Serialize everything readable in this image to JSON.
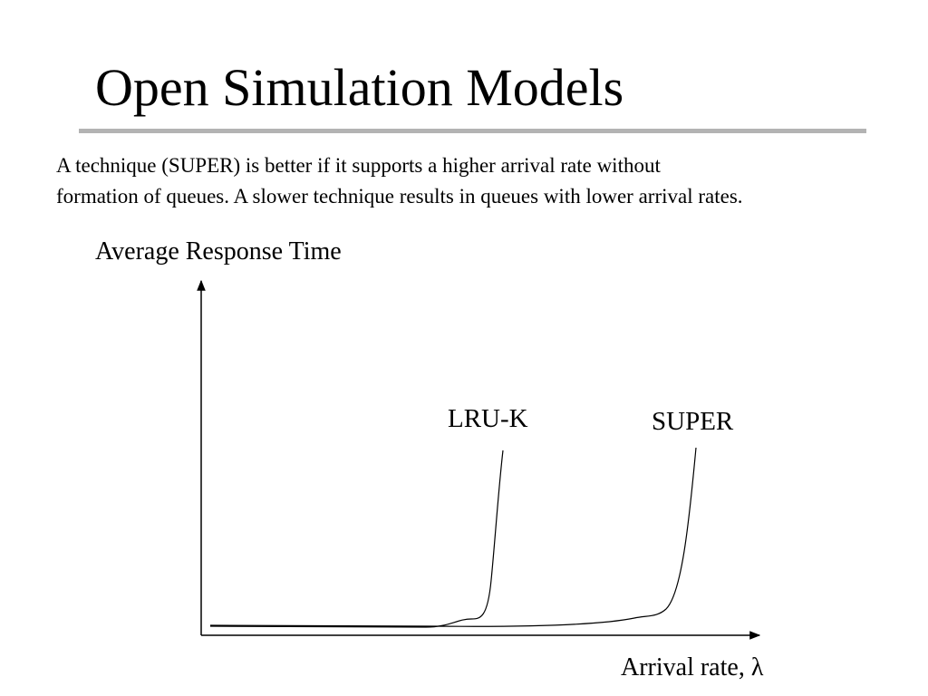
{
  "slide": {
    "title": "Open Simulation Models",
    "description_lines": [
      "A technique (SUPER) is better if it supports a higher arrival rate without",
      "formation of queues.  A slower technique results in queues with lower arrival rates."
    ]
  },
  "diagram": {
    "y_axis_label": "Average Response Time",
    "x_axis_label": "Arrival rate, λ",
    "curves": [
      {
        "name": "LRU-K",
        "description": "response time stays flat then rises sharply at a lower arrival rate"
      },
      {
        "name": "SUPER",
        "description": "response time stays flat then rises sharply at a higher arrival rate"
      }
    ]
  }
}
